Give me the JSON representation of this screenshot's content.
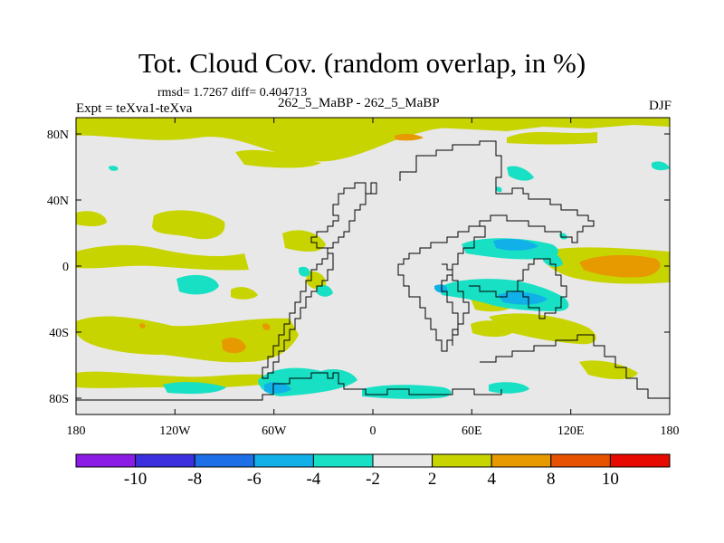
{
  "figure": {
    "title": "Tot. Cloud Cov. (random overlap, in %)",
    "stats": "rmsd= 1.7267 diff= 0.404713",
    "experiment": "Expt = teXva1-teXva",
    "cases": "262_5_MaBP - 262_5_MaBP",
    "season": "DJF"
  },
  "axes": {
    "lat_ticks": [
      "80N",
      "40N",
      "0",
      "40S",
      "80S"
    ],
    "lon_ticks": [
      "180",
      "120W",
      "60W",
      "0",
      "60E",
      "120E",
      "180"
    ],
    "lon_range": [
      -180,
      180
    ],
    "lat_range": [
      -90,
      90
    ]
  },
  "colorbar": {
    "labels": [
      "-10",
      "-8",
      "-6",
      "-4",
      "-2",
      "2",
      "4",
      "8",
      "10"
    ],
    "colors": [
      "#8b1ce6",
      "#3b2fe0",
      "#1d6fe8",
      "#12b0e8",
      "#18e0c4",
      "#e8e8e8",
      "#c8d400",
      "#e69a00",
      "#e65200",
      "#e60a00"
    ]
  },
  "map_colors": {
    "background": "#e8e8e8",
    "neg_light": "#18e0c4",
    "neg_mid": "#12b0e8",
    "pos_light": "#c8d400",
    "pos_mid": "#e69a00"
  }
}
